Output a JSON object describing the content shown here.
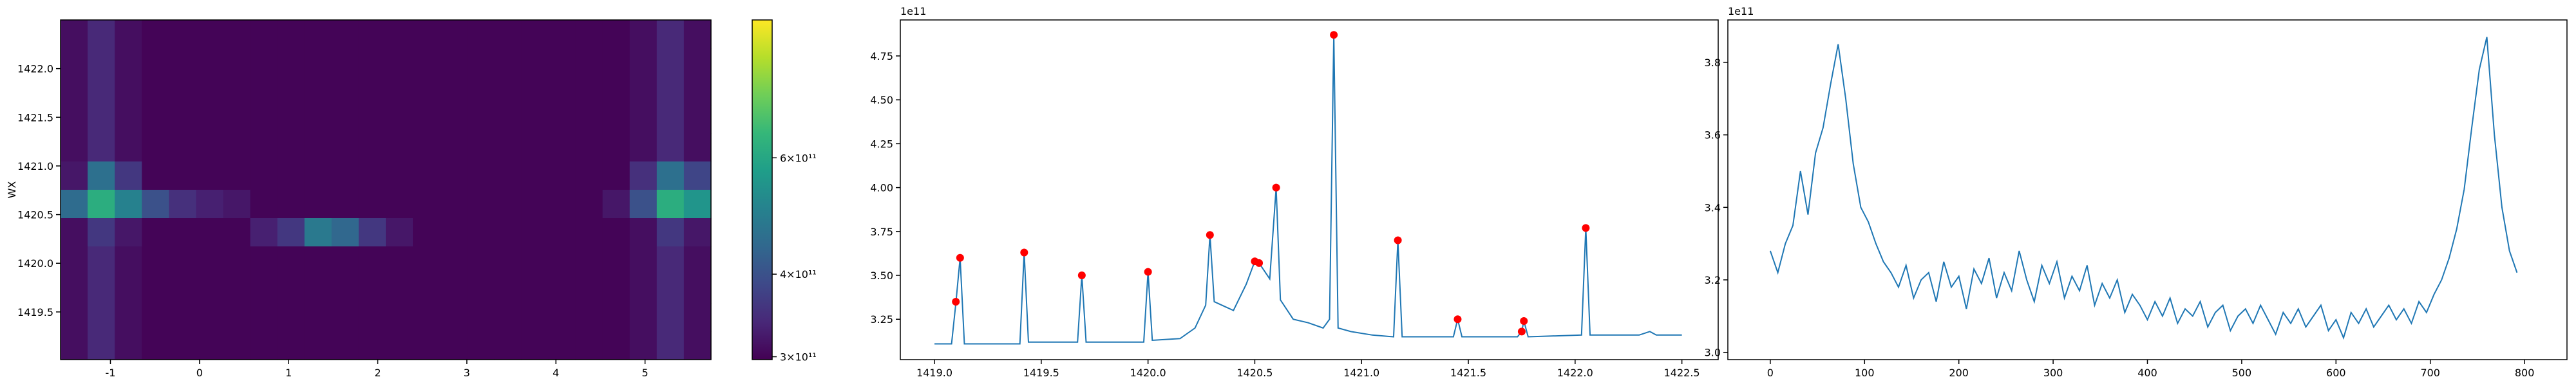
{
  "chart_data": [
    {
      "type": "heatmap",
      "ylabel": "WX",
      "colormap": "viridis",
      "log_color": true,
      "xlim": [
        -1.56,
        5.74
      ],
      "ylim": [
        1419.01,
        1422.5
      ],
      "xticks": [
        -1,
        0,
        1,
        2,
        3,
        4,
        5
      ],
      "yticks": [
        1419.5,
        {
          "value": 1420,
          "label": "1420.0"
        },
        1420.5,
        {
          "value": 1421,
          "label": "1421.0"
        },
        1421.5,
        {
          "value": 1422,
          "label": "1422.0"
        }
      ],
      "clim": [
        297000000000.0,
        970000000000.0
      ],
      "cticks": [
        {
          "value": 300000000000.0,
          "label": "3×10¹¹"
        },
        {
          "value": 400000000000.0,
          "label": "4×10¹¹"
        },
        {
          "value": 600000000000.0,
          "label": "6×10¹¹"
        }
      ],
      "z": [
        [
          310000000000.0,
          340000000000.0,
          310000000000.0,
          300000000000.0,
          300000000000.0,
          300000000000.0,
          300000000000.0,
          300000000000.0,
          300000000000.0,
          300000000000.0,
          300000000000.0,
          300000000000.0,
          300000000000.0,
          300000000000.0,
          300000000000.0,
          300000000000.0,
          300000000000.0,
          300000000000.0,
          300000000000.0,
          300000000000.0,
          300000000000.0,
          310000000000.0,
          340000000000.0,
          310000000000.0
        ],
        [
          310000000000.0,
          340000000000.0,
          310000000000.0,
          300000000000.0,
          300000000000.0,
          300000000000.0,
          300000000000.0,
          300000000000.0,
          300000000000.0,
          300000000000.0,
          300000000000.0,
          300000000000.0,
          300000000000.0,
          300000000000.0,
          300000000000.0,
          300000000000.0,
          300000000000.0,
          300000000000.0,
          300000000000.0,
          300000000000.0,
          300000000000.0,
          310000000000.0,
          340000000000.0,
          310000000000.0
        ],
        [
          310000000000.0,
          340000000000.0,
          310000000000.0,
          300000000000.0,
          300000000000.0,
          300000000000.0,
          300000000000.0,
          300000000000.0,
          300000000000.0,
          300000000000.0,
          300000000000.0,
          300000000000.0,
          300000000000.0,
          300000000000.0,
          300000000000.0,
          300000000000.0,
          300000000000.0,
          300000000000.0,
          300000000000.0,
          300000000000.0,
          300000000000.0,
          310000000000.0,
          340000000000.0,
          310000000000.0
        ],
        [
          310000000000.0,
          340000000000.0,
          310000000000.0,
          300000000000.0,
          300000000000.0,
          300000000000.0,
          300000000000.0,
          300000000000.0,
          300000000000.0,
          300000000000.0,
          300000000000.0,
          300000000000.0,
          300000000000.0,
          300000000000.0,
          300000000000.0,
          300000000000.0,
          300000000000.0,
          300000000000.0,
          300000000000.0,
          300000000000.0,
          300000000000.0,
          310000000000.0,
          340000000000.0,
          310000000000.0
        ],
        [
          310000000000.0,
          340000000000.0,
          310000000000.0,
          300000000000.0,
          300000000000.0,
          300000000000.0,
          300000000000.0,
          300000000000.0,
          300000000000.0,
          300000000000.0,
          300000000000.0,
          300000000000.0,
          300000000000.0,
          300000000000.0,
          300000000000.0,
          300000000000.0,
          300000000000.0,
          300000000000.0,
          300000000000.0,
          300000000000.0,
          300000000000.0,
          310000000000.0,
          340000000000.0,
          310000000000.0
        ],
        [
          320000000000.0,
          460000000000.0,
          360000000000.0,
          300000000000.0,
          300000000000.0,
          300000000000.0,
          300000000000.0,
          300000000000.0,
          300000000000.0,
          300000000000.0,
          300000000000.0,
          300000000000.0,
          300000000000.0,
          300000000000.0,
          300000000000.0,
          300000000000.0,
          300000000000.0,
          300000000000.0,
          300000000000.0,
          300000000000.0,
          300000000000.0,
          350000000000.0,
          460000000000.0,
          380000000000.0
        ],
        [
          450000000000.0,
          620000000000.0,
          500000000000.0,
          400000000000.0,
          350000000000.0,
          330000000000.0,
          320000000000.0,
          300000000000.0,
          300000000000.0,
          300000000000.0,
          300000000000.0,
          300000000000.0,
          300000000000.0,
          300000000000.0,
          300000000000.0,
          300000000000.0,
          300000000000.0,
          300000000000.0,
          300000000000.0,
          300000000000.0,
          320000000000.0,
          400000000000.0,
          620000000000.0,
          550000000000.0
        ],
        [
          310000000000.0,
          360000000000.0,
          320000000000.0,
          300000000000.0,
          300000000000.0,
          300000000000.0,
          300000000000.0,
          330000000000.0,
          360000000000.0,
          480000000000.0,
          440000000000.0,
          360000000000.0,
          320000000000.0,
          300000000000.0,
          300000000000.0,
          300000000000.0,
          300000000000.0,
          300000000000.0,
          300000000000.0,
          300000000000.0,
          300000000000.0,
          310000000000.0,
          360000000000.0,
          320000000000.0
        ],
        [
          310000000000.0,
          340000000000.0,
          310000000000.0,
          300000000000.0,
          300000000000.0,
          300000000000.0,
          300000000000.0,
          300000000000.0,
          300000000000.0,
          300000000000.0,
          300000000000.0,
          300000000000.0,
          300000000000.0,
          300000000000.0,
          300000000000.0,
          300000000000.0,
          300000000000.0,
          300000000000.0,
          300000000000.0,
          300000000000.0,
          300000000000.0,
          310000000000.0,
          340000000000.0,
          310000000000.0
        ],
        [
          310000000000.0,
          340000000000.0,
          310000000000.0,
          300000000000.0,
          300000000000.0,
          300000000000.0,
          300000000000.0,
          300000000000.0,
          300000000000.0,
          300000000000.0,
          300000000000.0,
          300000000000.0,
          300000000000.0,
          300000000000.0,
          300000000000.0,
          300000000000.0,
          300000000000.0,
          300000000000.0,
          300000000000.0,
          300000000000.0,
          300000000000.0,
          310000000000.0,
          340000000000.0,
          310000000000.0
        ],
        [
          310000000000.0,
          340000000000.0,
          310000000000.0,
          300000000000.0,
          300000000000.0,
          300000000000.0,
          300000000000.0,
          300000000000.0,
          300000000000.0,
          300000000000.0,
          300000000000.0,
          300000000000.0,
          300000000000.0,
          300000000000.0,
          300000000000.0,
          300000000000.0,
          300000000000.0,
          300000000000.0,
          300000000000.0,
          300000000000.0,
          300000000000.0,
          310000000000.0,
          340000000000.0,
          310000000000.0
        ],
        [
          310000000000.0,
          340000000000.0,
          310000000000.0,
          300000000000.0,
          300000000000.0,
          300000000000.0,
          300000000000.0,
          300000000000.0,
          300000000000.0,
          300000000000.0,
          300000000000.0,
          300000000000.0,
          300000000000.0,
          300000000000.0,
          300000000000.0,
          300000000000.0,
          300000000000.0,
          300000000000.0,
          300000000000.0,
          300000000000.0,
          300000000000.0,
          310000000000.0,
          340000000000.0,
          310000000000.0
        ]
      ]
    },
    {
      "type": "line",
      "offset_text": "1e11",
      "xlim": [
        1418.84,
        1422.67
      ],
      "ylim": [
        3.02,
        4.955
      ],
      "xticks": [
        {
          "value": 1419,
          "label": "1419.0"
        },
        1419.5,
        {
          "value": 1420,
          "label": "1420.0"
        },
        1420.5,
        {
          "value": 1421,
          "label": "1421.0"
        },
        1421.5,
        {
          "value": 1422,
          "label": "1422.0"
        },
        1422.5
      ],
      "yticks": [
        3.25,
        {
          "value": 3.5,
          "label": "3.50"
        },
        3.75,
        {
          "value": 4,
          "label": "4.00"
        },
        4.25,
        {
          "value": 4.5,
          "label": "4.50"
        },
        4.75
      ],
      "series": [
        {
          "style": "line",
          "color": "#1f77b4",
          "x": [
            1419.0,
            1419.08,
            1419.1,
            1419.12,
            1419.14,
            1419.4,
            1419.42,
            1419.44,
            1419.67,
            1419.69,
            1419.71,
            1419.98,
            1420.0,
            1420.02,
            1420.15,
            1420.22,
            1420.27,
            1420.29,
            1420.31,
            1420.4,
            1420.46,
            1420.5,
            1420.52,
            1420.57,
            1420.6,
            1420.62,
            1420.68,
            1420.75,
            1420.82,
            1420.85,
            1420.87,
            1420.89,
            1420.95,
            1421.05,
            1421.15,
            1421.17,
            1421.19,
            1421.43,
            1421.45,
            1421.47,
            1421.73,
            1421.75,
            1421.76,
            1421.78,
            1422.03,
            1422.05,
            1422.07,
            1422.3,
            1422.35,
            1422.38,
            1422.5
          ],
          "values": [
            3.11,
            3.11,
            3.34,
            3.6,
            3.11,
            3.11,
            3.63,
            3.12,
            3.12,
            3.5,
            3.12,
            3.12,
            3.52,
            3.13,
            3.14,
            3.2,
            3.33,
            3.73,
            3.35,
            3.3,
            3.45,
            3.58,
            3.57,
            3.48,
            4.0,
            3.36,
            3.25,
            3.23,
            3.2,
            3.25,
            4.87,
            3.2,
            3.18,
            3.16,
            3.15,
            3.7,
            3.15,
            3.15,
            3.25,
            3.15,
            3.15,
            3.18,
            3.24,
            3.15,
            3.16,
            3.77,
            3.16,
            3.16,
            3.18,
            3.16,
            3.16
          ]
        },
        {
          "style": "markers",
          "color": "#ff0000",
          "x": [
            1419.1,
            1419.12,
            1419.42,
            1419.69,
            1420.0,
            1420.29,
            1420.5,
            1420.52,
            1420.6,
            1420.87,
            1421.17,
            1421.45,
            1421.75,
            1421.76,
            1422.05
          ],
          "values": [
            3.35,
            3.6,
            3.63,
            3.5,
            3.52,
            3.73,
            3.58,
            3.57,
            4.0,
            4.87,
            3.7,
            3.25,
            3.18,
            3.24,
            3.77
          ]
        }
      ]
    },
    {
      "type": "line",
      "offset_text": "1e11",
      "xlim": [
        -45,
        845
      ],
      "ylim": [
        2.98,
        3.917
      ],
      "xticks": [
        0,
        100,
        200,
        300,
        400,
        500,
        600,
        700,
        800
      ],
      "yticks": [
        {
          "value": 3,
          "label": "3.0"
        },
        3.2,
        3.4,
        3.6,
        3.8
      ],
      "series": [
        {
          "style": "line",
          "color": "#1f77b4",
          "x": [
            0,
            8,
            16,
            24,
            32,
            40,
            48,
            56,
            64,
            72,
            80,
            88,
            96,
            104,
            112,
            120,
            128,
            136,
            144,
            152,
            160,
            168,
            176,
            184,
            192,
            200,
            208,
            216,
            224,
            232,
            240,
            248,
            256,
            264,
            272,
            280,
            288,
            296,
            304,
            312,
            320,
            328,
            336,
            344,
            352,
            360,
            368,
            376,
            384,
            392,
            400,
            408,
            416,
            424,
            432,
            440,
            448,
            456,
            464,
            472,
            480,
            488,
            496,
            504,
            512,
            520,
            528,
            536,
            544,
            552,
            560,
            568,
            576,
            584,
            592,
            600,
            608,
            616,
            624,
            632,
            640,
            648,
            656,
            664,
            672,
            680,
            688,
            696,
            704,
            712,
            720,
            728,
            736,
            744,
            752,
            760,
            768,
            776,
            784,
            792
          ],
          "values": [
            3.28,
            3.22,
            3.3,
            3.35,
            3.5,
            3.38,
            3.55,
            3.62,
            3.74,
            3.85,
            3.7,
            3.52,
            3.4,
            3.36,
            3.3,
            3.25,
            3.22,
            3.18,
            3.24,
            3.15,
            3.2,
            3.22,
            3.14,
            3.25,
            3.18,
            3.21,
            3.12,
            3.23,
            3.19,
            3.26,
            3.15,
            3.22,
            3.17,
            3.28,
            3.2,
            3.14,
            3.24,
            3.19,
            3.25,
            3.15,
            3.21,
            3.17,
            3.24,
            3.13,
            3.19,
            3.15,
            3.2,
            3.11,
            3.16,
            3.13,
            3.09,
            3.14,
            3.1,
            3.15,
            3.08,
            3.12,
            3.1,
            3.14,
            3.07,
            3.11,
            3.13,
            3.06,
            3.1,
            3.12,
            3.08,
            3.13,
            3.09,
            3.05,
            3.11,
            3.08,
            3.12,
            3.07,
            3.1,
            3.13,
            3.06,
            3.09,
            3.04,
            3.11,
            3.08,
            3.12,
            3.07,
            3.1,
            3.13,
            3.09,
            3.12,
            3.08,
            3.14,
            3.11,
            3.16,
            3.2,
            3.26,
            3.34,
            3.45,
            3.62,
            3.78,
            3.87,
            3.6,
            3.4,
            3.28,
            3.22
          ]
        }
      ]
    }
  ]
}
